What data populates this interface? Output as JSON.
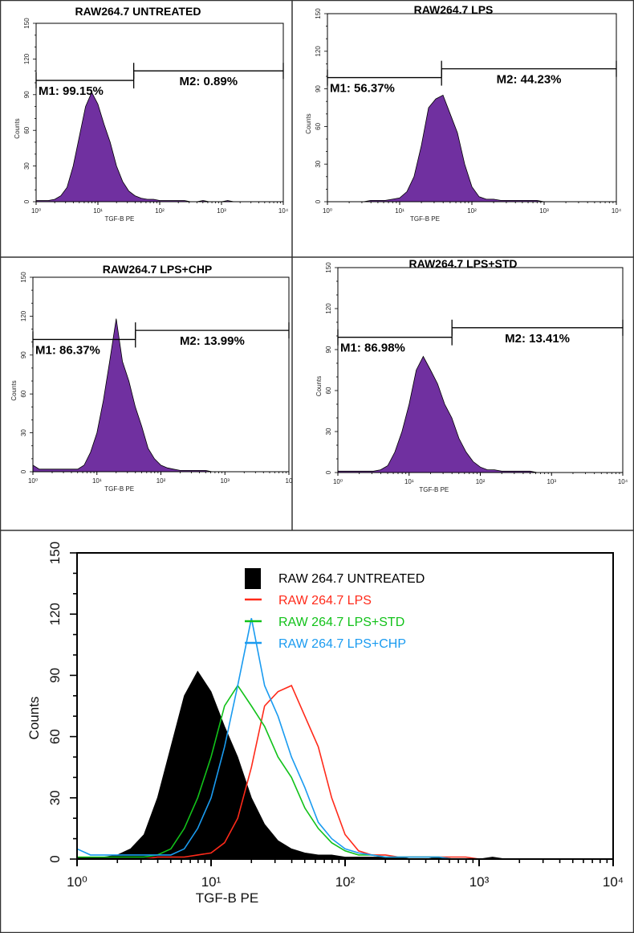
{
  "chart_data": [
    {
      "type": "area",
      "title": "RAW264.7 UNTREATED",
      "xlabel": "TGF-B PE",
      "ylabel": "Counts",
      "xscale": "log",
      "xlim": [
        1,
        10000
      ],
      "ylim": [
        0,
        150
      ],
      "xticks": [
        "10⁰",
        "10¹",
        "10²",
        "10³",
        "10⁴"
      ],
      "yticks": [
        "0",
        "30",
        "60",
        "90",
        "120",
        "150"
      ],
      "gates": [
        {
          "label": "M1: 99.15%",
          "range": [
            1,
            38
          ],
          "count": 102
        },
        {
          "label": "M2: 0.89%",
          "range": [
            38,
            10000
          ],
          "count": 110
        }
      ],
      "series": [
        {
          "color": "#7030a0",
          "ref": "untreated"
        }
      ]
    },
    {
      "type": "area",
      "title": "RAW264.7 LPS",
      "xlabel": "TGF-B PE",
      "ylabel": "Counts",
      "xscale": "log",
      "xlim": [
        1,
        10000
      ],
      "ylim": [
        0,
        150
      ],
      "xticks": [
        "10⁰",
        "10¹",
        "10²",
        "10³",
        "10⁴"
      ],
      "yticks": [
        "0",
        "30",
        "60",
        "90",
        "120",
        "150"
      ],
      "gates": [
        {
          "label": "M1: 56.37%",
          "range": [
            1,
            38
          ],
          "count": 99
        },
        {
          "label": "M2: 44.23%",
          "range": [
            38,
            10000
          ],
          "count": 106
        }
      ],
      "series": [
        {
          "color": "#7030a0",
          "ref": "lps"
        }
      ]
    },
    {
      "type": "area",
      "title": "RAW264.7 LPS+CHP",
      "xlabel": "TGF-B PE",
      "ylabel": "Counts",
      "xscale": "log",
      "xlim": [
        1,
        10000
      ],
      "ylim": [
        0,
        150
      ],
      "xticks": [
        "10⁰",
        "10¹",
        "10²",
        "10³",
        "10"
      ],
      "yticks": [
        "0",
        "30",
        "60",
        "90",
        "120",
        "150"
      ],
      "gates": [
        {
          "label": "M1: 86.37%",
          "range": [
            1,
            40
          ],
          "count": 102
        },
        {
          "label": "M2: 13.99%",
          "range": [
            40,
            10000
          ],
          "count": 109
        }
      ],
      "series": [
        {
          "color": "#7030a0",
          "ref": "lps_chp"
        }
      ]
    },
    {
      "type": "area",
      "title": "RAW264.7 LPS+STD",
      "xlabel": "TGF-B PE",
      "ylabel": "Counts",
      "xscale": "log",
      "xlim": [
        1,
        10000
      ],
      "ylim": [
        0,
        150
      ],
      "xticks": [
        "10⁰",
        "10¹",
        "10²",
        "10³",
        "10⁴"
      ],
      "yticks": [
        "0",
        "30",
        "60",
        "90",
        "120",
        "150"
      ],
      "gates": [
        {
          "label": "M1: 86.98%",
          "range": [
            1,
            40
          ],
          "count": 99
        },
        {
          "label": "M2: 13.41%",
          "range": [
            40,
            10000
          ],
          "count": 106
        }
      ],
      "series": [
        {
          "color": "#7030a0",
          "ref": "lps_std"
        }
      ]
    },
    {
      "type": "line",
      "title": "",
      "xlabel": "TGF-B PE",
      "ylabel": "Counts",
      "xscale": "log",
      "xlim": [
        1,
        10000
      ],
      "ylim": [
        0,
        150
      ],
      "xticks": [
        "10⁰",
        "10¹",
        "10²",
        "10³",
        "10⁴"
      ],
      "yticks": [
        "0",
        "30",
        "60",
        "90",
        "120",
        "150"
      ],
      "legend_position": "top-right",
      "x": [
        1,
        1.26,
        1.58,
        2,
        2.51,
        3.16,
        3.98,
        5.01,
        6.31,
        7.94,
        10,
        12.6,
        15.8,
        20,
        25.1,
        31.6,
        39.8,
        50.1,
        63.1,
        79.4,
        100,
        126,
        158,
        200,
        251,
        316,
        398,
        501,
        631,
        794,
        1000,
        1259,
        1585,
        1995,
        2512,
        3162,
        3981,
        5012,
        6310,
        7943,
        10000
      ],
      "series": [
        {
          "key": "untreated",
          "name": "RAW 264.7 UNTREATED",
          "color": "#000000",
          "filled": true,
          "values": [
            1,
            1,
            1,
            2,
            5,
            12,
            30,
            55,
            80,
            92,
            82,
            65,
            50,
            30,
            17,
            9,
            5,
            3,
            2,
            2,
            1,
            1,
            1,
            1,
            1,
            0,
            0,
            1,
            0,
            0,
            0,
            1,
            0,
            0,
            0,
            0,
            0,
            0,
            0,
            0,
            0
          ]
        },
        {
          "key": "lps",
          "name": "RAW 264.7 LPS",
          "color": "#ff2a1a",
          "filled": false,
          "values": [
            0,
            0,
            0,
            0,
            0,
            0,
            1,
            1,
            1,
            2,
            3,
            8,
            20,
            45,
            75,
            82,
            85,
            70,
            55,
            30,
            12,
            4,
            2,
            2,
            1,
            1,
            1,
            1,
            1,
            1,
            0,
            0,
            0,
            0,
            0,
            0,
            0,
            0,
            0,
            0,
            0
          ]
        },
        {
          "key": "lps_std",
          "name": "RAW 264.7 LPS+STD",
          "color": "#12c21a",
          "filled": false,
          "values": [
            1,
            1,
            1,
            1,
            1,
            1,
            2,
            5,
            15,
            30,
            50,
            75,
            85,
            75,
            65,
            50,
            40,
            25,
            15,
            8,
            4,
            2,
            2,
            1,
            1,
            1,
            1,
            1,
            0,
            0,
            0,
            0,
            0,
            0,
            0,
            0,
            0,
            0,
            0,
            0,
            0
          ]
        },
        {
          "key": "lps_chp",
          "name": "RAW 264.7 LPS+CHP",
          "color": "#1a9bf0",
          "filled": false,
          "values": [
            5,
            2,
            2,
            2,
            2,
            2,
            2,
            2,
            5,
            15,
            30,
            55,
            85,
            118,
            85,
            70,
            50,
            35,
            18,
            10,
            5,
            3,
            2,
            1,
            1,
            1,
            1,
            1,
            0,
            0,
            0,
            0,
            0,
            0,
            0,
            0,
            0,
            0,
            0,
            0,
            0
          ]
        }
      ]
    }
  ]
}
